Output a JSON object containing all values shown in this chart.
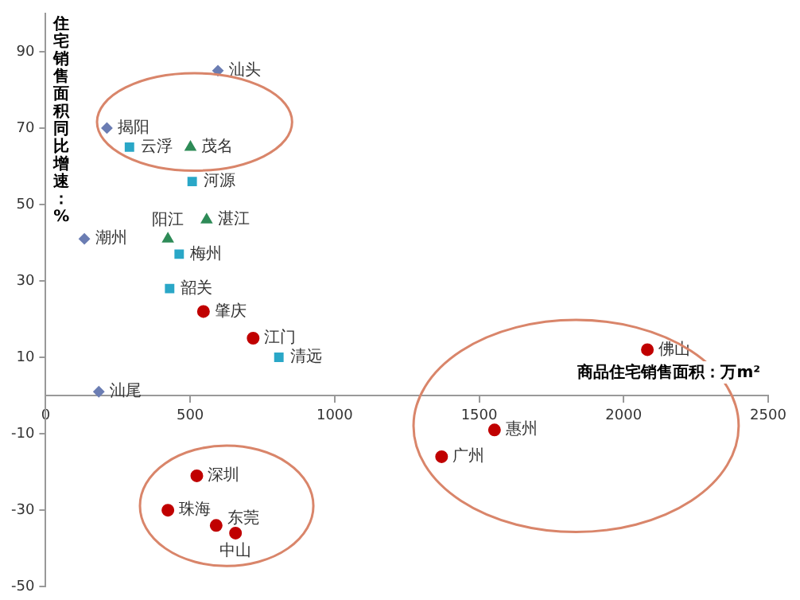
{
  "chart_data": {
    "type": "scatter",
    "xlabel": "商品住宅销售面积：万m²",
    "ylabel": "住宅销售面积同比增速：%",
    "xlim": [
      0,
      2500
    ],
    "xticks": [
      0,
      500,
      1000,
      1500,
      2000,
      2500
    ],
    "ylim": [
      -50,
      100
    ],
    "yticks": [
      -50,
      -30,
      -10,
      10,
      30,
      50,
      70,
      90
    ],
    "grid": false,
    "legend": false,
    "series": [
      {
        "color": "#6b7db3",
        "marker": "diamond",
        "x": [
          596,
          212,
          134,
          184
        ],
        "values": [
          85,
          70,
          41,
          1
        ]
      },
      {
        "color": "#2aa7c7",
        "marker": "square",
        "x": [
          290,
          507,
          462,
          429,
          807
        ],
        "values": [
          65,
          56,
          37,
          28,
          10
        ]
      },
      {
        "color": "#2e8b57",
        "marker": "triangle",
        "x": [
          501,
          557,
          423
        ],
        "values": [
          65,
          46,
          41
        ]
      },
      {
        "color": "#c00000",
        "marker": "circle",
        "x": [
          546,
          718,
          2082,
          1553,
          1370,
          523,
          423,
          590,
          657
        ],
        "values": [
          22,
          15,
          12,
          -9,
          -16,
          -21,
          -30,
          -34,
          -36
        ]
      }
    ],
    "annotations": [
      {
        "text": "汕头",
        "x": 596,
        "y": 85
      },
      {
        "text": "揭阳",
        "x": 212,
        "y": 70
      },
      {
        "text": "潮州",
        "x": 134,
        "y": 41
      },
      {
        "text": "汕尾",
        "x": 184,
        "y": 1
      },
      {
        "text": "云浮",
        "x": 290,
        "y": 65
      },
      {
        "text": "河源",
        "x": 507,
        "y": 56
      },
      {
        "text": "梅州",
        "x": 462,
        "y": 37
      },
      {
        "text": "韶关",
        "x": 429,
        "y": 28
      },
      {
        "text": "清远",
        "x": 807,
        "y": 10
      },
      {
        "text": "茂名",
        "x": 501,
        "y": 65
      },
      {
        "text": "湛江",
        "x": 557,
        "y": 46
      },
      {
        "text": "阳江",
        "x": 423,
        "y": 41
      },
      {
        "text": "肇庆",
        "x": 546,
        "y": 22
      },
      {
        "text": "江门",
        "x": 718,
        "y": 15
      },
      {
        "text": "佛山",
        "x": 2082,
        "y": 12
      },
      {
        "text": "惠州",
        "x": 1553,
        "y": -9
      },
      {
        "text": "广州",
        "x": 1370,
        "y": -16
      },
      {
        "text": "深圳",
        "x": 523,
        "y": -21
      },
      {
        "text": "珠海",
        "x": 423,
        "y": -30
      },
      {
        "text": "东莞",
        "x": 590,
        "y": -34
      },
      {
        "text": "中山",
        "x": 657,
        "y": -36
      }
    ]
  }
}
